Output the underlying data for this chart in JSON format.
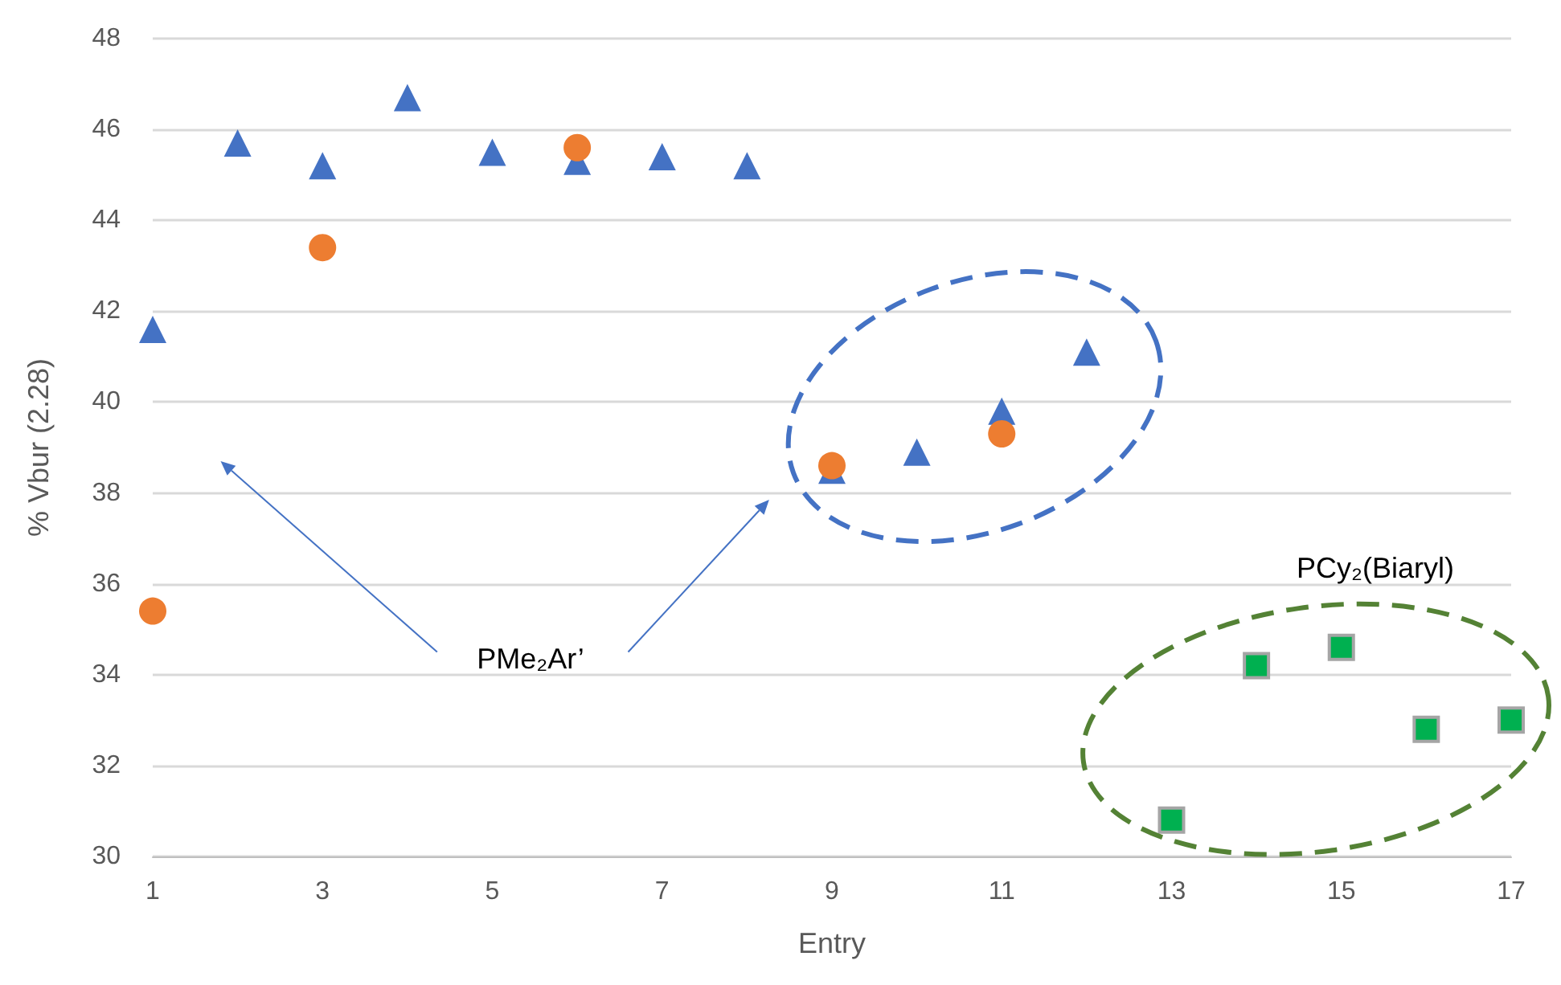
{
  "chart_data": {
    "type": "scatter",
    "xlabel": "Entry",
    "ylabel": "% Vbur (2.28)",
    "xlim": [
      1,
      17
    ],
    "xticks": [
      1,
      3,
      5,
      7,
      9,
      11,
      13,
      15,
      17
    ],
    "ylim": [
      30,
      48
    ],
    "yticks": [
      30,
      32,
      34,
      36,
      38,
      40,
      42,
      44,
      46,
      48
    ],
    "grid": "y",
    "series": [
      {
        "color": "#4472c4",
        "marker": "triangle",
        "x": [
          1,
          2,
          3,
          4,
          5,
          6,
          7,
          8,
          9,
          10,
          11,
          12
        ],
        "values": [
          41.6,
          45.7,
          45.2,
          46.7,
          45.5,
          45.3,
          45.4,
          45.2,
          38.5,
          38.9,
          39.8,
          41.1
        ]
      },
      {
        "color": "#ed7d31",
        "marker": "circle",
        "x": [
          1,
          3,
          6,
          9,
          11
        ],
        "values": [
          35.4,
          43.4,
          45.6,
          38.6,
          39.3
        ]
      },
      {
        "color": "#00b050",
        "marker": "square",
        "x": [
          13,
          14,
          15,
          16,
          17
        ],
        "values": [
          30.8,
          34.2,
          34.6,
          32.8,
          33.0
        ]
      }
    ],
    "annotations": [
      "PMe₂Ar’",
      "PCy₂(Biaryl)"
    ]
  }
}
